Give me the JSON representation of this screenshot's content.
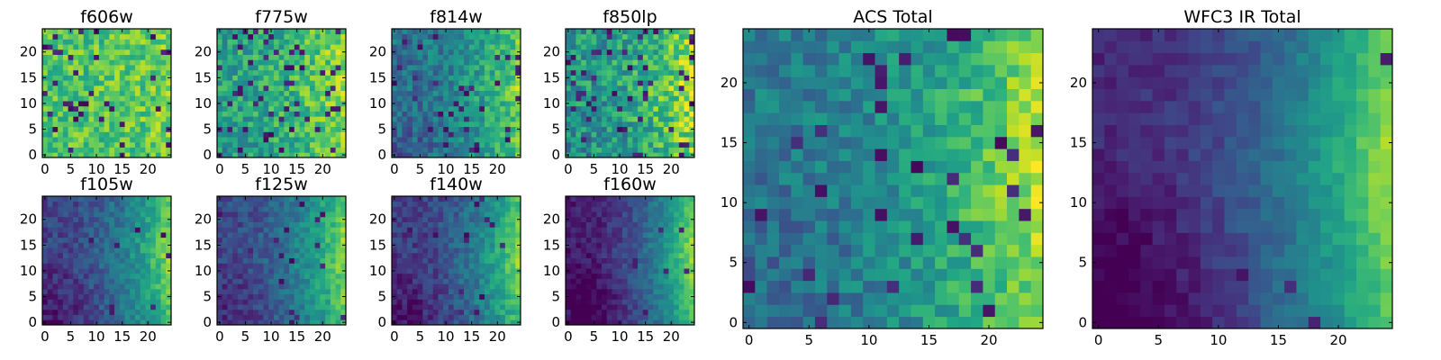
{
  "chart_data": [
    {
      "type": "heatmap",
      "id": "f606w",
      "title": "f606w",
      "grid_size": 25,
      "xlim": [
        -0.5,
        24.5
      ],
      "ylim": [
        -0.5,
        24.5
      ],
      "xticks": [
        0,
        5,
        10,
        15,
        20
      ],
      "yticks": [
        0,
        5,
        10,
        15,
        20
      ],
      "colormap": "viridis",
      "pattern": {
        "base": 0.74,
        "gradient": 0.06,
        "corner_dark": 0.0,
        "noise": 0.16,
        "dark_pixels": 0.06,
        "seed": 11
      }
    },
    {
      "type": "heatmap",
      "id": "f775w",
      "title": "f775w",
      "grid_size": 25,
      "xlim": [
        -0.5,
        24.5
      ],
      "ylim": [
        -0.5,
        24.5
      ],
      "xticks": [
        0,
        5,
        10,
        15,
        20
      ],
      "yticks": [
        0,
        5,
        10,
        15,
        20
      ],
      "colormap": "viridis",
      "pattern": {
        "base": 0.66,
        "gradient": 0.22,
        "corner_dark": 0.05,
        "noise": 0.17,
        "dark_pixels": 0.07,
        "seed": 23
      }
    },
    {
      "type": "heatmap",
      "id": "f814w",
      "title": "f814w",
      "grid_size": 25,
      "xlim": [
        -0.5,
        24.5
      ],
      "ylim": [
        -0.5,
        24.5
      ],
      "xticks": [
        0,
        5,
        10,
        15,
        20
      ],
      "yticks": [
        0,
        5,
        10,
        15,
        20
      ],
      "colormap": "viridis",
      "pattern": {
        "base": 0.5,
        "gradient": 0.35,
        "corner_dark": 0.1,
        "noise": 0.15,
        "dark_pixels": 0.05,
        "seed": 37
      }
    },
    {
      "type": "heatmap",
      "id": "f850lp",
      "title": "f850lp",
      "grid_size": 25,
      "xlim": [
        -0.5,
        24.5
      ],
      "ylim": [
        -0.5,
        24.5
      ],
      "xticks": [
        0,
        5,
        10,
        15,
        20
      ],
      "yticks": [
        0,
        5,
        10,
        15,
        20
      ],
      "colormap": "viridis",
      "pattern": {
        "base": 0.62,
        "gradient": 0.3,
        "corner_dark": 0.05,
        "noise": 0.2,
        "dark_pixels": 0.09,
        "seed": 41
      }
    },
    {
      "type": "heatmap",
      "id": "f105w",
      "title": "f105w",
      "grid_size": 25,
      "xlim": [
        -0.5,
        24.5
      ],
      "ylim": [
        -0.5,
        24.5
      ],
      "xticks": [
        0,
        5,
        10,
        15,
        20
      ],
      "yticks": [
        0,
        5,
        10,
        15,
        20
      ],
      "colormap": "viridis",
      "pattern": {
        "base": 0.38,
        "gradient": 0.5,
        "corner_dark": 0.15,
        "noise": 0.1,
        "dark_pixels": 0.02,
        "seed": 53
      }
    },
    {
      "type": "heatmap",
      "id": "f125w",
      "title": "f125w",
      "grid_size": 25,
      "xlim": [
        -0.5,
        24.5
      ],
      "ylim": [
        -0.5,
        24.5
      ],
      "xticks": [
        0,
        5,
        10,
        15,
        20
      ],
      "yticks": [
        0,
        5,
        10,
        15,
        20
      ],
      "colormap": "viridis",
      "pattern": {
        "base": 0.4,
        "gradient": 0.5,
        "corner_dark": 0.12,
        "noise": 0.1,
        "dark_pixels": 0.02,
        "seed": 67
      }
    },
    {
      "type": "heatmap",
      "id": "f140w",
      "title": "f140w",
      "grid_size": 25,
      "xlim": [
        -0.5,
        24.5
      ],
      "ylim": [
        -0.5,
        24.5
      ],
      "xticks": [
        0,
        5,
        10,
        15,
        20
      ],
      "yticks": [
        0,
        5,
        10,
        15,
        20
      ],
      "colormap": "viridis",
      "pattern": {
        "base": 0.36,
        "gradient": 0.52,
        "corner_dark": 0.15,
        "noise": 0.1,
        "dark_pixels": 0.03,
        "seed": 79
      }
    },
    {
      "type": "heatmap",
      "id": "f160w",
      "title": "f160w",
      "grid_size": 25,
      "xlim": [
        -0.5,
        24.5
      ],
      "ylim": [
        -0.5,
        24.5
      ],
      "xticks": [
        0,
        5,
        10,
        15,
        20
      ],
      "yticks": [
        0,
        5,
        10,
        15,
        20
      ],
      "colormap": "viridis",
      "pattern": {
        "base": 0.3,
        "gradient": 0.62,
        "corner_dark": 0.18,
        "noise": 0.08,
        "dark_pixels": 0.02,
        "seed": 83
      }
    },
    {
      "type": "heatmap",
      "id": "acs_total",
      "title": "ACS Total",
      "grid_size": 25,
      "xlim": [
        -0.5,
        24.5
      ],
      "ylim": [
        -0.5,
        24.5
      ],
      "xticks": [
        0,
        5,
        10,
        15,
        20
      ],
      "yticks": [
        0,
        5,
        10,
        15,
        20
      ],
      "colormap": "viridis",
      "pattern": {
        "base": 0.55,
        "gradient": 0.4,
        "corner_dark": 0.1,
        "noise": 0.13,
        "dark_pixels": 0.05,
        "seed": 97
      }
    },
    {
      "type": "heatmap",
      "id": "wfc3_ir_total",
      "title": "WFC3 IR Total",
      "grid_size": 25,
      "xlim": [
        -0.5,
        24.5
      ],
      "ylim": [
        -0.5,
        24.5
      ],
      "xticks": [
        0,
        5,
        10,
        15,
        20
      ],
      "yticks": [
        0,
        5,
        10,
        15,
        20
      ],
      "colormap": "viridis",
      "pattern": {
        "base": 0.33,
        "gradient": 0.6,
        "corner_dark": 0.18,
        "noise": 0.06,
        "dark_pixels": 0.01,
        "seed": 101
      }
    }
  ]
}
